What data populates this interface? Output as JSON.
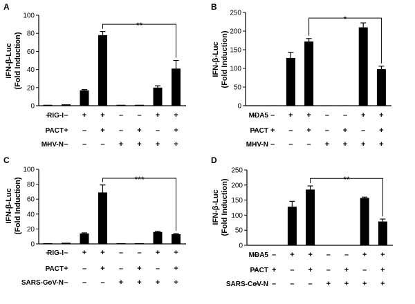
{
  "chart_data": [
    {
      "type": "bar",
      "panel": "A",
      "ylabel": "IFN-β-Luc\n(Fold Induction)",
      "ylim": [
        0,
        100
      ],
      "yticks": [
        0,
        20,
        40,
        60,
        80,
        100
      ],
      "values": [
        1,
        1.5,
        17,
        78,
        1,
        1,
        20,
        41
      ],
      "errors": [
        0,
        0,
        0.8,
        4,
        0,
        0,
        2,
        9
      ],
      "conditions": [
        {
          "name": "RIG-I",
          "signs": [
            "–",
            "–",
            "+",
            "+",
            "–",
            "–",
            "+",
            "+"
          ]
        },
        {
          "name": "PACT",
          "signs": [
            "–",
            "+",
            "–",
            "+",
            "–",
            "+",
            "–",
            "+"
          ]
        },
        {
          "name": "MHV-N",
          "signs": [
            "–",
            "–",
            "–",
            "–",
            "+",
            "+",
            "+",
            "+"
          ]
        }
      ],
      "significance": {
        "label": "**",
        "from": 3,
        "to": 7,
        "level": 90
      }
    },
    {
      "type": "bar",
      "panel": "B",
      "ylabel": "IFN-β-Luc\n(Fold Induction)",
      "ylim": [
        0,
        250
      ],
      "yticks": [
        0,
        50,
        100,
        150,
        200,
        250
      ],
      "values": [
        1,
        1,
        128,
        172,
        1,
        1,
        210,
        98
      ],
      "errors": [
        0,
        0,
        15,
        8,
        0,
        0,
        12,
        8
      ],
      "conditions": [
        {
          "name": "MDA5",
          "signs": [
            "–",
            "–",
            "+",
            "+",
            "–",
            "–",
            "+",
            "+"
          ]
        },
        {
          "name": "PACT",
          "signs": [
            "–",
            "+",
            "–",
            "+",
            "–",
            "+",
            "–",
            "+"
          ]
        },
        {
          "name": "MHV-N",
          "signs": [
            "–",
            "–",
            "–",
            "–",
            "+",
            "+",
            "+",
            "+"
          ]
        }
      ],
      "significance": {
        "label": "*",
        "from": 3,
        "to": 7,
        "level": 235
      }
    },
    {
      "type": "bar",
      "panel": "C",
      "ylabel": "IFN-β-Luc\n(Fold Induction)",
      "ylim": [
        0,
        100
      ],
      "yticks": [
        0,
        20,
        40,
        60,
        80,
        100
      ],
      "values": [
        1,
        1.5,
        14,
        69,
        1,
        1,
        16,
        13
      ],
      "errors": [
        0,
        0,
        0.8,
        10,
        0,
        0,
        1,
        0.8
      ],
      "conditions": [
        {
          "name": "RIG-I",
          "signs": [
            "–",
            "–",
            "+",
            "+",
            "–",
            "–",
            "+",
            "+"
          ]
        },
        {
          "name": "PACT",
          "signs": [
            "–",
            "+",
            "–",
            "+",
            "–",
            "+",
            "–",
            "+"
          ]
        },
        {
          "name": "SARS-CoV-N",
          "signs": [
            "–",
            "–",
            "–",
            "–",
            "+",
            "+",
            "+",
            "+"
          ]
        }
      ],
      "significance": {
        "label": "***",
        "from": 3,
        "to": 7,
        "level": 88
      }
    },
    {
      "type": "bar",
      "panel": "D",
      "ylabel": "IFN-β-Luc\n(Fold Induction)",
      "ylim": [
        0,
        250
      ],
      "yticks": [
        0,
        50,
        100,
        150,
        200,
        250
      ],
      "values": [
        1,
        1,
        128,
        185,
        1,
        1,
        157,
        79
      ],
      "errors": [
        0,
        0,
        18,
        12,
        0,
        0,
        3,
        8
      ],
      "conditions": [
        {
          "name": "MDA5",
          "signs": [
            "–",
            "–",
            "+",
            "+",
            "–",
            "–",
            "+",
            "+"
          ]
        },
        {
          "name": "PACT",
          "signs": [
            "–",
            "+",
            "–",
            "+",
            "–",
            "+",
            "–",
            "+"
          ]
        },
        {
          "name": "SARS-CoV-N",
          "signs": [
            "–",
            "–",
            "–",
            "–",
            "+",
            "+",
            "+",
            "+"
          ]
        }
      ],
      "significance": {
        "label": "**",
        "from": 3,
        "to": 7,
        "level": 222
      }
    }
  ],
  "colors": {
    "bar": "#000000",
    "axis": "#000000",
    "background": "#ffffff"
  }
}
